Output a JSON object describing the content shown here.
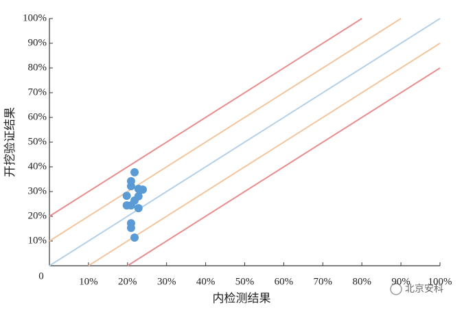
{
  "chart_data": {
    "type": "scatter",
    "x_label": "内检测结果",
    "y_label": "开挖验证结果",
    "watermark": "北京安科",
    "xlim": [
      0,
      100
    ],
    "ylim": [
      0,
      100
    ],
    "xticks": [
      0,
      {
        "value": 10,
        "label": "10%"
      },
      {
        "value": 20,
        "label": "20%"
      },
      {
        "value": 30,
        "label": "30%"
      },
      {
        "value": 40,
        "label": "40%"
      },
      {
        "value": 50,
        "label": "50%"
      },
      {
        "value": 60,
        "label": "60%"
      },
      {
        "value": 70,
        "label": "70%"
      },
      {
        "value": 80,
        "label": "80%"
      },
      {
        "value": 90,
        "label": "90%"
      },
      {
        "value": 100,
        "label": "100%"
      }
    ],
    "yticks": [
      {
        "value": 10,
        "label": "10%"
      },
      {
        "value": 20,
        "label": "20%"
      },
      {
        "value": 30,
        "label": "30%"
      },
      {
        "value": 40,
        "label": "40%"
      },
      {
        "value": 50,
        "label": "50%"
      },
      {
        "value": 60,
        "label": "60%"
      },
      {
        "value": 70,
        "label": "70%"
      },
      {
        "value": 80,
        "label": "80%"
      },
      {
        "value": 90,
        "label": "90%"
      },
      {
        "value": 100,
        "label": "100%"
      }
    ],
    "reference_lines": [
      {
        "color": "#e88c8c",
        "x": [
          0,
          80
        ],
        "values": [
          20,
          100
        ]
      },
      {
        "color": "#f2c59d",
        "x": [
          0,
          90
        ],
        "values": [
          10,
          100
        ]
      },
      {
        "color": "#b3d0e8",
        "x": [
          0,
          100
        ],
        "values": [
          0,
          100
        ]
      },
      {
        "color": "#f2c59d",
        "x": [
          10,
          100
        ],
        "values": [
          0,
          90
        ]
      },
      {
        "color": "#e88c8c",
        "x": [
          20,
          100
        ],
        "values": [
          0,
          80
        ]
      }
    ],
    "color": "#5b9bd5",
    "x": [
      21.8,
      20.9,
      20.9,
      22.8,
      23.9,
      19.8,
      22.8,
      21.8,
      19.8,
      20.9,
      22.8,
      20.9,
      20.9,
      21.8
    ],
    "values": [
      37.8,
      34.2,
      32.2,
      31.1,
      30.8,
      28.3,
      28.1,
      26.4,
      24.4,
      24.4,
      23.3,
      17.2,
      15.3,
      11.4
    ]
  }
}
